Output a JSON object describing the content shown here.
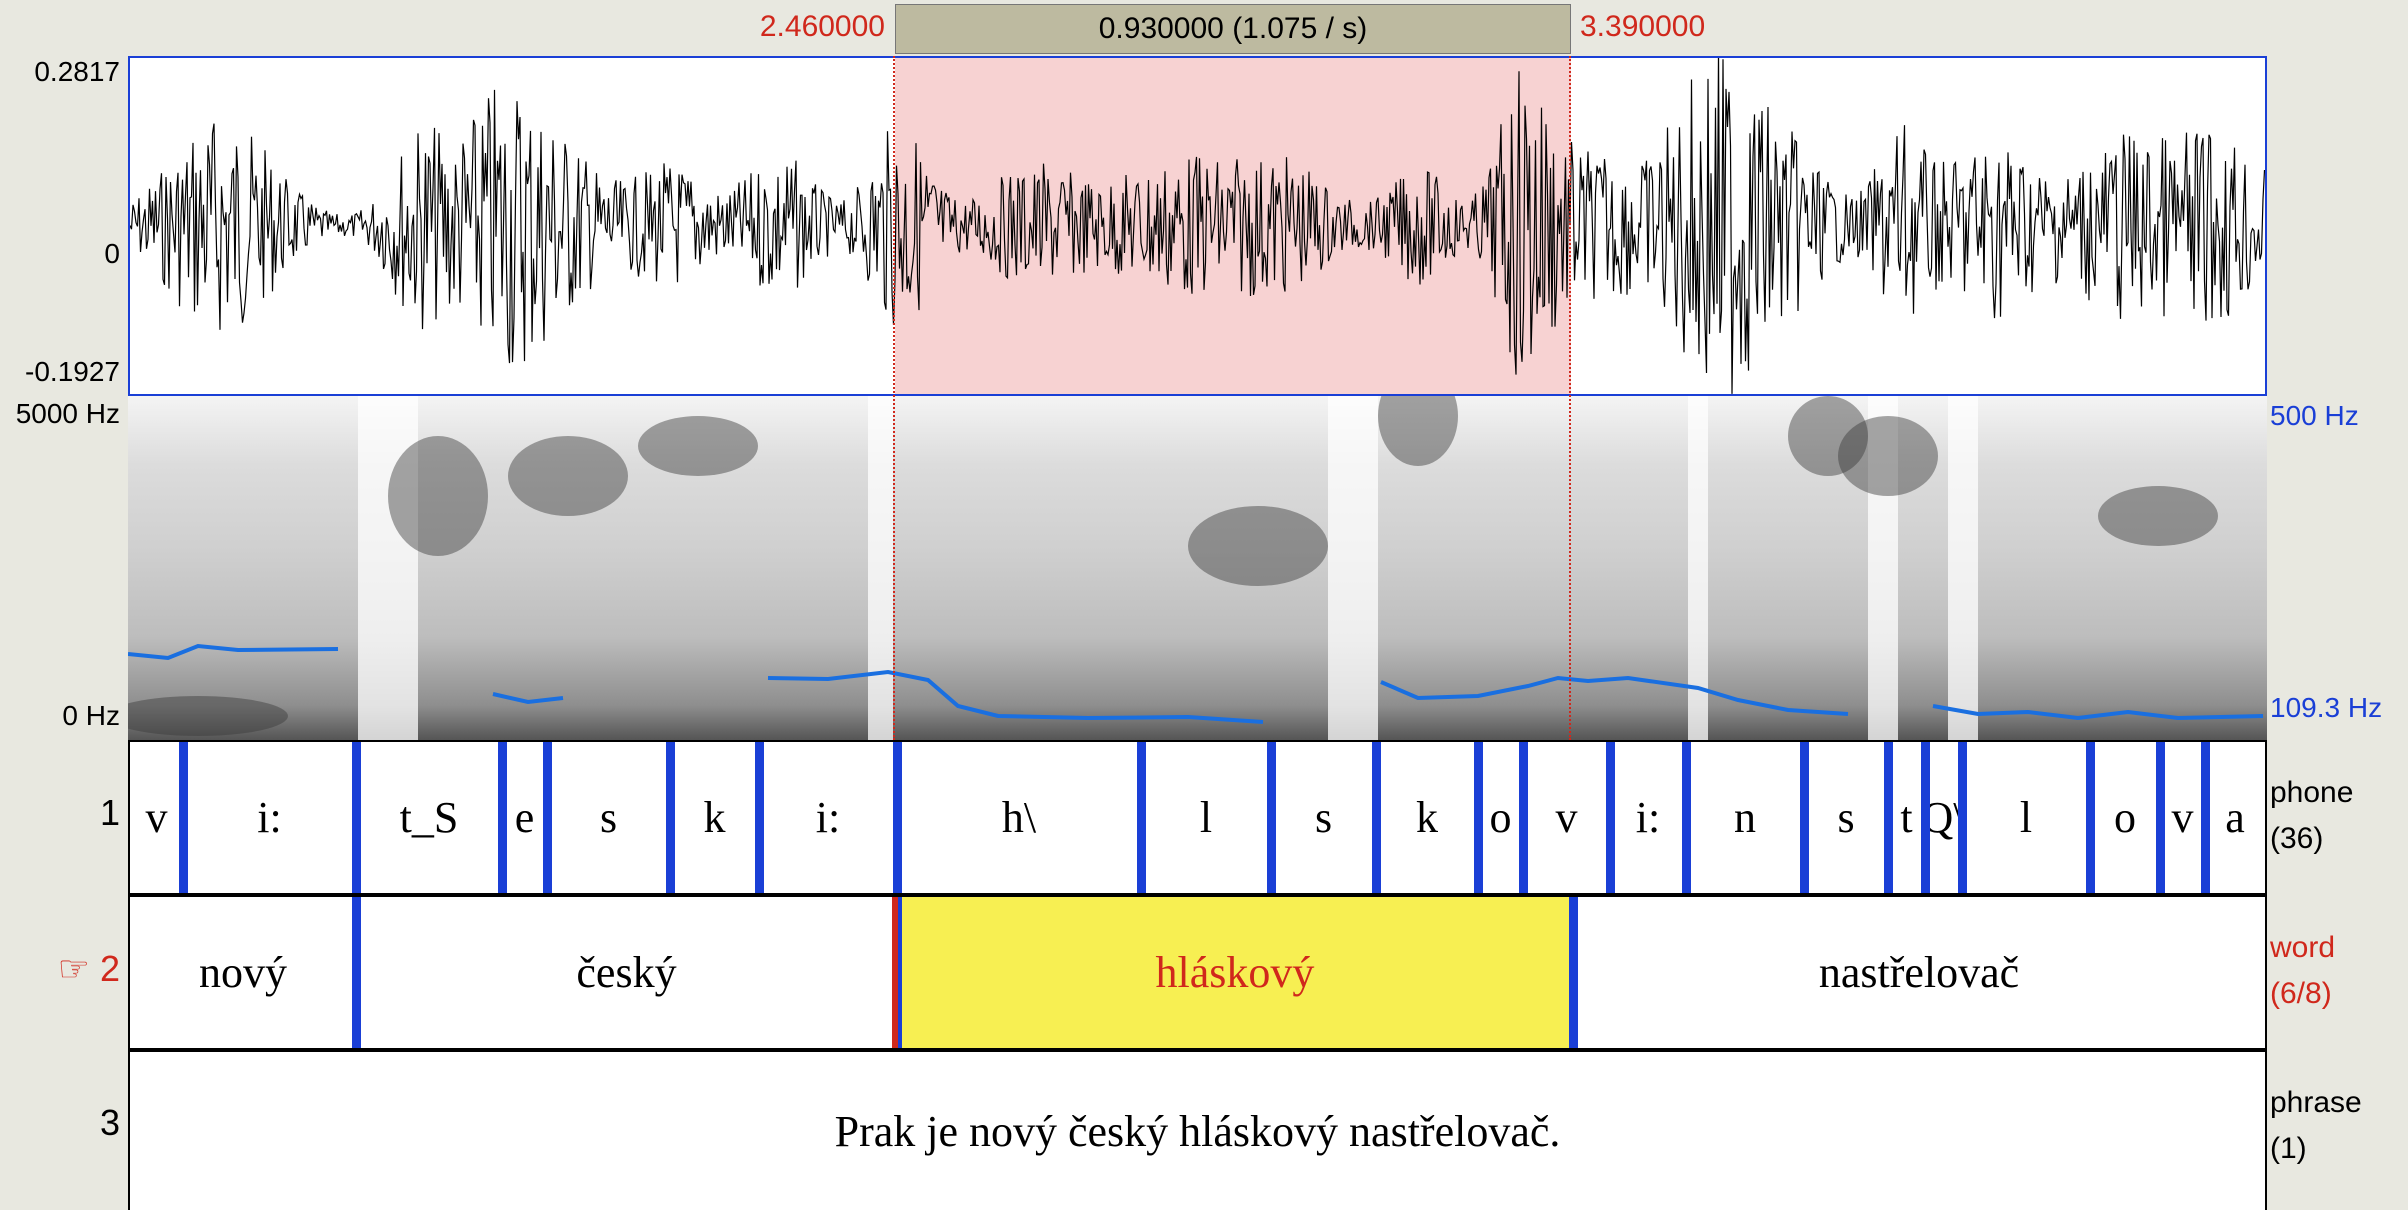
{
  "selection": {
    "start": "2.460000",
    "end": "3.390000",
    "duration_label": "0.930000 (1.075 / s)"
  },
  "waveform": {
    "y_max": "0.2817",
    "y_zero": "0",
    "y_min": "-0.1927"
  },
  "spectrogram": {
    "freq_max": "5000 Hz",
    "freq_min": "0 Hz",
    "pitch_max": "500 Hz",
    "pitch_value": "109.3 Hz"
  },
  "tiers": [
    {
      "number": "1",
      "name": "phone",
      "count": "(36)",
      "segments": [
        "v",
        "i:",
        "t_S",
        "e",
        "s",
        "k",
        "i:",
        "h\\",
        "l",
        "s",
        "k",
        "o",
        "v",
        "i:",
        "n",
        "s",
        "t",
        "Q\\",
        "l",
        "o",
        "v",
        "a"
      ]
    },
    {
      "number": "2",
      "marker": "☞",
      "name": "word",
      "count": "(6/8)",
      "segments": [
        "nový",
        "český",
        "hláskový",
        "nastřelovač"
      ]
    },
    {
      "number": "3",
      "name": "phrase",
      "count": "(1)",
      "segments": [
        "Prak je nový český hláskový nastřelovač."
      ]
    }
  ],
  "colors": {
    "selection_fill": "#f7d2d2",
    "selected_word_fill": "#f7ef52",
    "boundary": "#1a3fd6",
    "selected_text": "#d0281c",
    "pitch_line": "#1a6fe0"
  }
}
